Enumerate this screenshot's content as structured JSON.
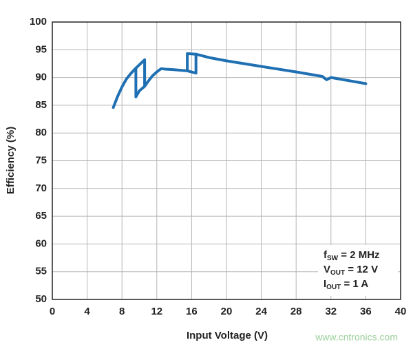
{
  "chart_data": {
    "type": "line",
    "x_label": "Input Voltage (V)",
    "y_label": "Efficiency (%)",
    "xlim": [
      0,
      40
    ],
    "ylim": [
      50,
      100
    ],
    "xticks": [
      0,
      4,
      8,
      12,
      16,
      20,
      24,
      28,
      32,
      36,
      40
    ],
    "yticks": [
      50,
      55,
      60,
      65,
      70,
      75,
      80,
      85,
      90,
      95,
      100
    ],
    "grid": true,
    "series": [
      {
        "color": "#1f70b3",
        "x": [
          7,
          7.5,
          8,
          8.5,
          9,
          9.6,
          10,
          10.6,
          10.6,
          null,
          9.6,
          9.6,
          10,
          10.6,
          11,
          11.5,
          12,
          12.5,
          13,
          14,
          15.5,
          16.5,
          16.5,
          null,
          15.5,
          15.5,
          16.5,
          18,
          20,
          24,
          28,
          31,
          31.5,
          32,
          36
        ],
        "values": [
          84.6,
          86.6,
          88.3,
          89.7,
          90.7,
          91.7,
          92.3,
          93.2,
          88.4,
          null,
          91.7,
          86.5,
          87.6,
          88.4,
          89.3,
          90.3,
          91,
          91.6,
          91.5,
          91.4,
          91.2,
          90.8,
          94.2,
          null,
          91.2,
          94.3,
          94.2,
          93.6,
          93,
          92,
          91,
          90.2,
          89.6,
          90,
          88.9
        ]
      }
    ],
    "annotation": [
      {
        "main": "f",
        "sub": "SW",
        "rest": " = 2 MHz"
      },
      {
        "main": "V",
        "sub": "OUT",
        "rest": " = 12 V"
      },
      {
        "main": "I",
        "sub": "OUT",
        "rest": " = 1 A"
      }
    ],
    "watermark": "www.cntronics.com"
  }
}
